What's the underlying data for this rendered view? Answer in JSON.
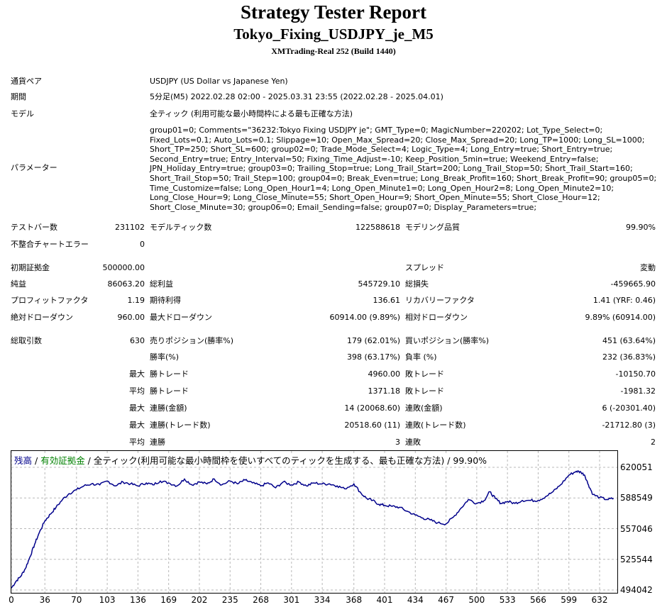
{
  "header": {
    "title": "Strategy Tester Report",
    "expert": "Tokyo_Fixing_USDJPY_je_M5",
    "server": "XMTrading-Real 252 (Build 1440)"
  },
  "info": {
    "symbol_label": "通貨ペア",
    "symbol_value": "USDJPY (US Dollar vs Japanese Yen)",
    "period_label": "期間",
    "period_value": "5分足(M5) 2022.02.28 02:00 - 2025.03.31 23:55 (2022.02.28 - 2025.04.01)",
    "model_label": "モデル",
    "model_value": "全ティック (利用可能な最小時間枠による最も正確な方法)",
    "params_label": "パラメーター",
    "params_value": "group01=0; Comments=\"36232:Tokyo Fixing USDJPY je\"; GMT_Type=0; MagicNumber=220202; Lot_Type_Select=0; Fixed_Lots=0.1; Auto_Lots=0.1; Slippage=10; Open_Max_Spread=20; Close_Max_Spread=20; Long_TP=1000; Long_SL=1000; Short_TP=250; Short_SL=600; group02=0; Trade_Mode_Select=4; Logic_Type=4; Long_Entry=true; Short_Entry=true; Second_Entry=true; Entry_Interval=50; Fixing_Time_Adjust=-10; Keep_Position_5min=true; Weekend_Entry=false; JPN_Holiday_Entry=true; group03=0; Trailing_Stop=true; Long_Trail_Start=200; Long_Trail_Stop=50; Short_Trail_Start=160; Short_Trail_Stop=50; Trail_Step=100; group04=0; Break_Even=true; Long_Break_Profit=160; Short_Break_Profit=90; group05=0; Time_Customize=false; Long_Open_Hour1=4; Long_Open_Minute1=0; Long_Open_Hour2=8; Long_Open_Minute2=10; Long_Close_Hour=9; Long_Close_Minute=55; Short_Open_Hour=9; Short_Open_Minute=55; Short_Close_Hour=12; Short_Close_Minute=30; group06=0; Email_Sending=false; group07=0; Display_Parameters=true;"
  },
  "stats": {
    "bars_label": "テストバー数",
    "bars_value": "231102",
    "ticks_label": "モデルティック数",
    "ticks_value": "122588618",
    "quality_label": "モデリング品質",
    "quality_value": "99.90%",
    "mismatch_label": "不整合チャートエラー",
    "mismatch_value": "0",
    "deposit_label": "初期証拠金",
    "deposit_value": "500000.00",
    "spread_label": "スプレッド",
    "spread_value": "変動",
    "net_label": "純益",
    "net_value": "86063.20",
    "gross_profit_label": "総利益",
    "gross_profit_value": "545729.10",
    "gross_loss_label": "総損失",
    "gross_loss_value": "-459665.90",
    "pf_label": "プロフィットファクタ",
    "pf_value": "1.19",
    "expected_label": "期待利得",
    "expected_value": "136.61",
    "recovery_label": "リカバリーファクタ",
    "recovery_value": "1.41 (YRF: 0.46)",
    "abs_dd_label": "絶対ドローダウン",
    "abs_dd_value": "960.00",
    "max_dd_label": "最大ドローダウン",
    "max_dd_value": "60914.00 (9.89%)",
    "rel_dd_label": "相対ドローダウン",
    "rel_dd_value": "9.89% (60914.00)",
    "trades_label": "総取引数",
    "trades_value": "630",
    "short_label": "売りポジション(勝率%)",
    "short_value": "179 (62.01%)",
    "long_label": "買いポジション(勝率%)",
    "long_value": "451 (63.64%)",
    "win_rate_label": "勝率(%)",
    "win_rate_value": "398 (63.17%)",
    "loss_rate_label": "負率 (%)",
    "loss_rate_value": "232 (36.83%)",
    "max_label": "最大",
    "avg_label": "平均",
    "largest_win_label": "勝トレード",
    "largest_win_value": "4960.00",
    "largest_loss_label": "敗トレード",
    "largest_loss_value": "-10150.70",
    "avg_win_label": "勝トレード",
    "avg_win_value": "1371.18",
    "avg_loss_label": "敗トレード",
    "avg_loss_value": "-1981.32",
    "max_consec_wins_money_label": "連勝(金額)",
    "max_consec_wins_money_value": "14 (20068.60)",
    "max_consec_loss_money_label": "連敗(金額)",
    "max_consec_loss_money_value": "6 (-20301.40)",
    "max_consec_wins_count_label": "連勝(トレード数)",
    "max_consec_wins_count_value": "20518.60 (11)",
    "max_consec_loss_count_label": "連敗(トレード数)",
    "max_consec_loss_count_value": "-21712.80 (3)",
    "avg_consec_wins_label": "連勝",
    "avg_consec_wins_value": "3",
    "avg_consec_loss_label": "連敗",
    "avg_consec_loss_value": "2"
  },
  "chart_data": {
    "type": "line",
    "title_balance": "残高",
    "title_sep1": " / ",
    "title_equity": "有効証拠金",
    "title_rest": " / 全ティック(利用可能な最小時間枠を使いすべてのティックを生成する、最も正確な方法) / 99.90%",
    "balance_color": "#00008b",
    "equity_color": "#008000",
    "x_ticks": [
      "0",
      "36",
      "70",
      "103",
      "136",
      "169",
      "202",
      "235",
      "268",
      "301",
      "334",
      "368",
      "401",
      "434",
      "467",
      "500",
      "533",
      "566",
      "599",
      "632"
    ],
    "y_ticks": [
      "620051",
      "588549",
      "557046",
      "525544",
      "494042"
    ],
    "ylim": [
      494042,
      620051
    ],
    "xlim": [
      0,
      648
    ],
    "x": [
      0,
      5,
      10,
      15,
      20,
      25,
      30,
      36,
      42,
      48,
      55,
      62,
      70,
      78,
      86,
      95,
      103,
      112,
      120,
      128,
      136,
      145,
      152,
      160,
      169,
      178,
      186,
      194,
      202,
      210,
      218,
      226,
      235,
      243,
      251,
      259,
      268,
      276,
      284,
      292,
      301,
      309,
      317,
      325,
      334,
      342,
      350,
      358,
      368,
      376,
      382,
      388,
      395,
      401,
      409,
      417,
      425,
      434,
      442,
      450,
      458,
      467,
      475,
      483,
      491,
      500,
      508,
      514,
      520,
      526,
      533,
      541,
      549,
      558,
      566,
      574,
      582,
      590,
      599,
      607,
      612,
      616,
      620,
      625,
      632,
      640,
      647
    ],
    "y": [
      496000,
      503000,
      508000,
      516000,
      528000,
      541000,
      553000,
      565000,
      572000,
      579000,
      587000,
      593000,
      597000,
      601000,
      603000,
      602000,
      606000,
      601000,
      605000,
      603000,
      601000,
      604000,
      602000,
      606000,
      604000,
      601000,
      608000,
      602000,
      605000,
      603000,
      608000,
      602000,
      606000,
      603000,
      607000,
      604000,
      601000,
      604000,
      599000,
      605000,
      602000,
      605000,
      601000,
      604000,
      603000,
      603000,
      601000,
      598000,
      603000,
      593000,
      588000,
      586000,
      582000,
      581000,
      580000,
      579000,
      575000,
      571000,
      568000,
      566000,
      563000,
      562000,
      569000,
      578000,
      587000,
      583000,
      586000,
      595000,
      588000,
      583000,
      585000,
      583000,
      586000,
      586000,
      586000,
      590000,
      595000,
      602000,
      612000,
      616000,
      615000,
      612000,
      602000,
      592000,
      589000,
      587000,
      588000
    ]
  }
}
